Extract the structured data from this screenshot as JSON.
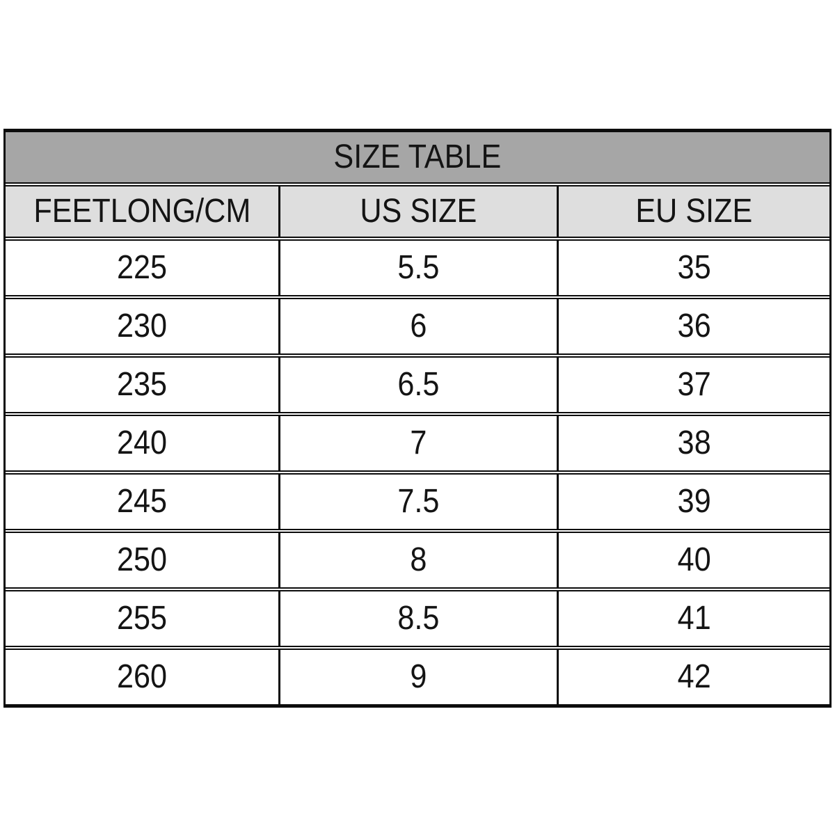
{
  "chart_data": {
    "type": "table",
    "title": "SIZE TABLE",
    "columns": [
      "FEETLONG/CM",
      "US SIZE",
      "EU SIZE"
    ],
    "rows": [
      [
        "225",
        "5.5",
        "35"
      ],
      [
        "230",
        "6",
        "36"
      ],
      [
        "235",
        "6.5",
        "37"
      ],
      [
        "240",
        "7",
        "38"
      ],
      [
        "245",
        "7.5",
        "39"
      ],
      [
        "250",
        "8",
        "40"
      ],
      [
        "255",
        "8.5",
        "41"
      ],
      [
        "260",
        "9",
        "42"
      ]
    ]
  },
  "colors": {
    "title_bg": "#a6a6a6",
    "header_bg": "#dedede",
    "row_bg": "#ffffff",
    "border": "#0c0c0c",
    "text": "#141414"
  }
}
